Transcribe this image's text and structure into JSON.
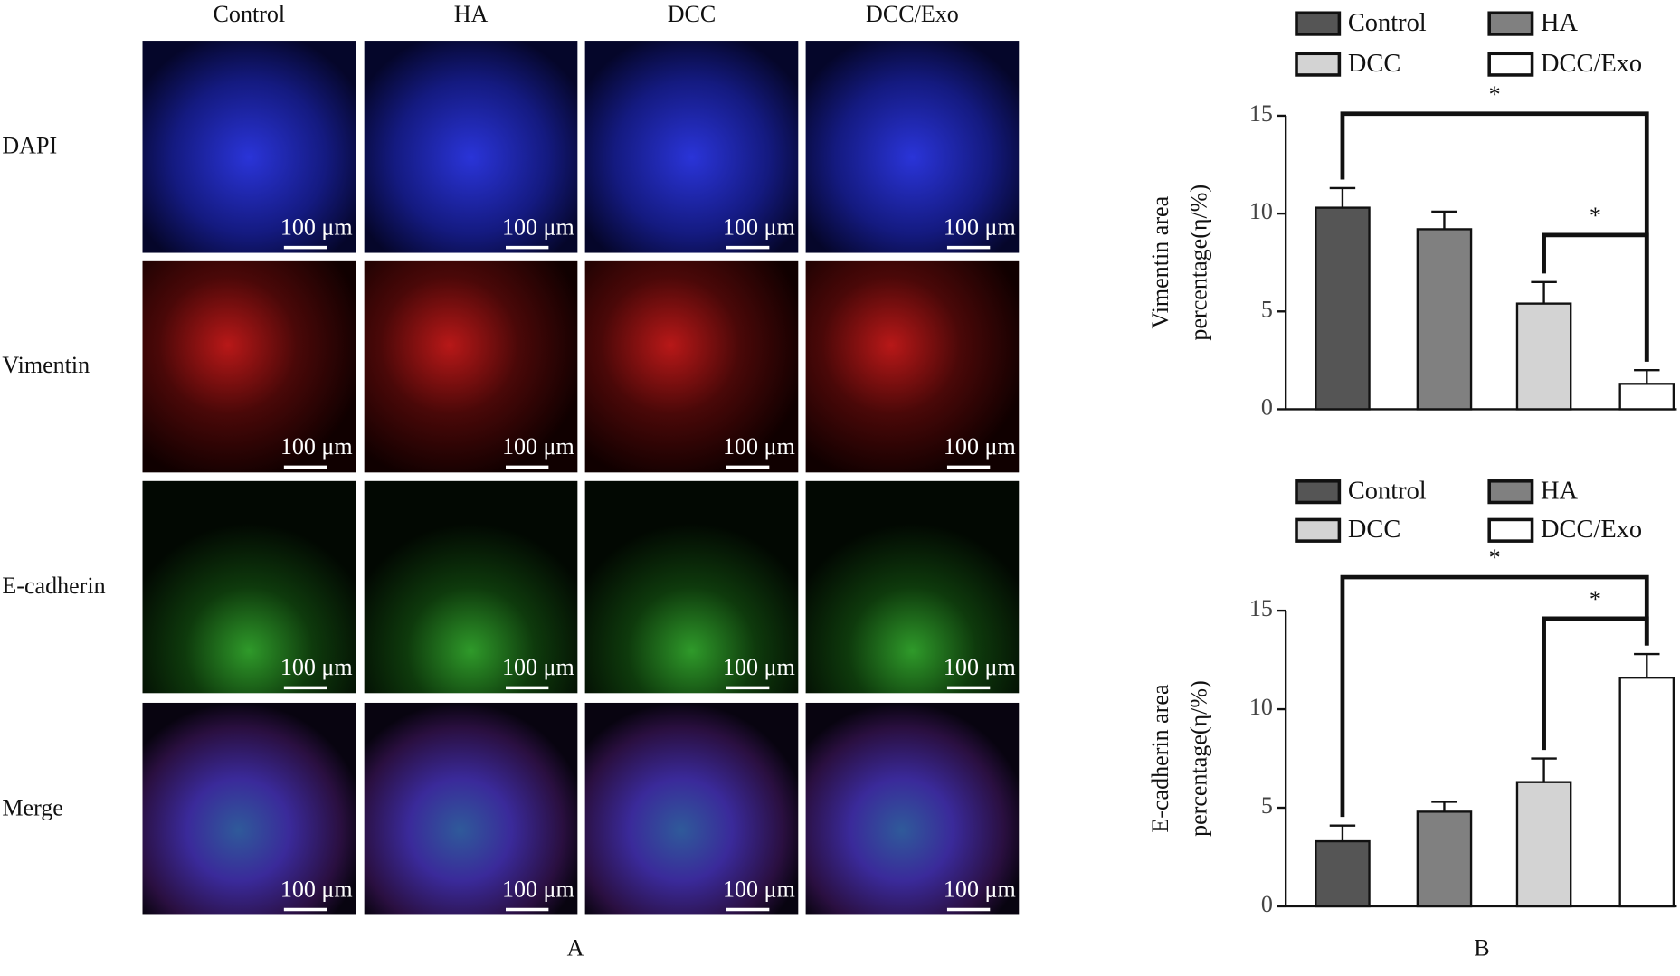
{
  "panel_a": {
    "label": "A",
    "columns": [
      "Control",
      "HA",
      "DCC",
      "DCC/Exo"
    ],
    "rows": [
      "DAPI",
      "Vimentin",
      "E-cadherin",
      "Merge"
    ],
    "scale_bar": "100 μm"
  },
  "panel_b": {
    "label": "B"
  },
  "chart_data": [
    {
      "type": "bar",
      "ylabel": [
        "Vimentin area",
        "percentage(η/%)"
      ],
      "categories": [
        "Control",
        "HA",
        "DCC",
        "DCC/Exo"
      ],
      "colors": [
        "#555555",
        "#808080",
        "#d3d3d3",
        "#ffffff"
      ],
      "values": [
        10.3,
        9.2,
        5.4,
        1.3
      ],
      "errors": [
        1.0,
        0.9,
        1.1,
        0.7
      ],
      "ylim": [
        0,
        15
      ],
      "yticks": [
        0,
        5,
        10,
        15
      ],
      "annotations": [
        {
          "label": "*",
          "pair": [
            0,
            3
          ],
          "level": 15.1
        },
        {
          "label": "*",
          "pair": [
            2,
            3
          ],
          "level": 8.9
        }
      ]
    },
    {
      "type": "bar",
      "ylabel": [
        "E-cadherin area",
        "percentage(η/%)"
      ],
      "categories": [
        "Control",
        "HA",
        "DCC",
        "DCC/Exo"
      ],
      "colors": [
        "#555555",
        "#808080",
        "#d3d3d3",
        "#ffffff"
      ],
      "values": [
        3.3,
        4.8,
        6.3,
        11.6
      ],
      "errors": [
        0.8,
        0.5,
        1.2,
        1.2
      ],
      "ylim": [
        0,
        15
      ],
      "yticks": [
        0,
        5,
        10,
        15
      ],
      "annotations": [
        {
          "label": "*",
          "pair": [
            0,
            3
          ],
          "level": 16.7
        },
        {
          "label": "*",
          "pair": [
            2,
            3
          ],
          "level": 14.6
        }
      ]
    }
  ]
}
